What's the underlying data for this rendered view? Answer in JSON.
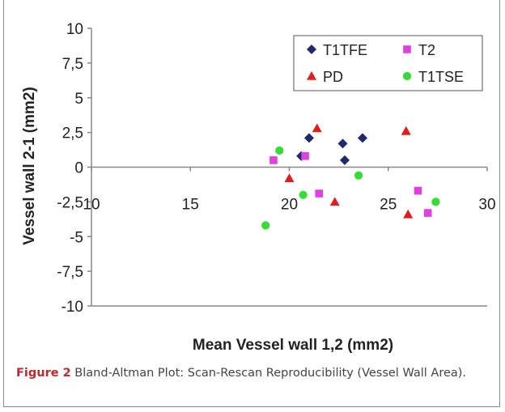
{
  "chart_data": {
    "type": "scatter",
    "xlabel": "Mean Vessel wall 1,2 (mm2)",
    "ylabel": "Vessel wall 2-1 (mm2)",
    "xlim": [
      10,
      30
    ],
    "ylim": [
      -10,
      10
    ],
    "x_ticks": [
      "10",
      "15",
      "20",
      "25",
      "30"
    ],
    "y_ticks": [
      "10",
      "7,5",
      "5",
      "2,5",
      "0",
      "-2,5",
      "-5",
      "-7,5",
      "-10"
    ],
    "x_tick_values": [
      10,
      15,
      20,
      25,
      30
    ],
    "y_tick_values": [
      10,
      7.5,
      5,
      2.5,
      0,
      -2.5,
      -5,
      -7.5,
      -10
    ],
    "grid": false,
    "legend_position": "top-right",
    "series": [
      {
        "name": "T1TFE",
        "marker": "diamond",
        "color": "#1f2a6e",
        "points": [
          [
            20.6,
            0.8
          ],
          [
            21.0,
            2.1
          ],
          [
            22.7,
            1.7
          ],
          [
            22.8,
            0.5
          ],
          [
            23.7,
            2.1
          ]
        ]
      },
      {
        "name": "T2",
        "marker": "square",
        "color": "#e040e0",
        "points": [
          [
            19.2,
            0.5
          ],
          [
            20.8,
            0.8
          ],
          [
            21.5,
            -1.9
          ],
          [
            26.5,
            -1.7
          ],
          [
            27.0,
            -3.3
          ]
        ]
      },
      {
        "name": "PD",
        "marker": "triangle",
        "color": "#e21b1b",
        "points": [
          [
            20.0,
            -0.8
          ],
          [
            21.4,
            2.8
          ],
          [
            22.3,
            -2.5
          ],
          [
            25.9,
            2.6
          ],
          [
            26.0,
            -3.4
          ]
        ]
      },
      {
        "name": "T1TSE",
        "marker": "circle",
        "color": "#33dd33",
        "points": [
          [
            18.8,
            -4.2
          ],
          [
            19.5,
            1.2
          ],
          [
            20.7,
            -2.0
          ],
          [
            23.5,
            -0.6
          ],
          [
            27.4,
            -2.5
          ]
        ]
      }
    ]
  },
  "caption": {
    "label": "Figure 2",
    "text": " Bland-Altman Plot: Scan-Rescan Reproducibility (Vessel Wall Area)."
  }
}
